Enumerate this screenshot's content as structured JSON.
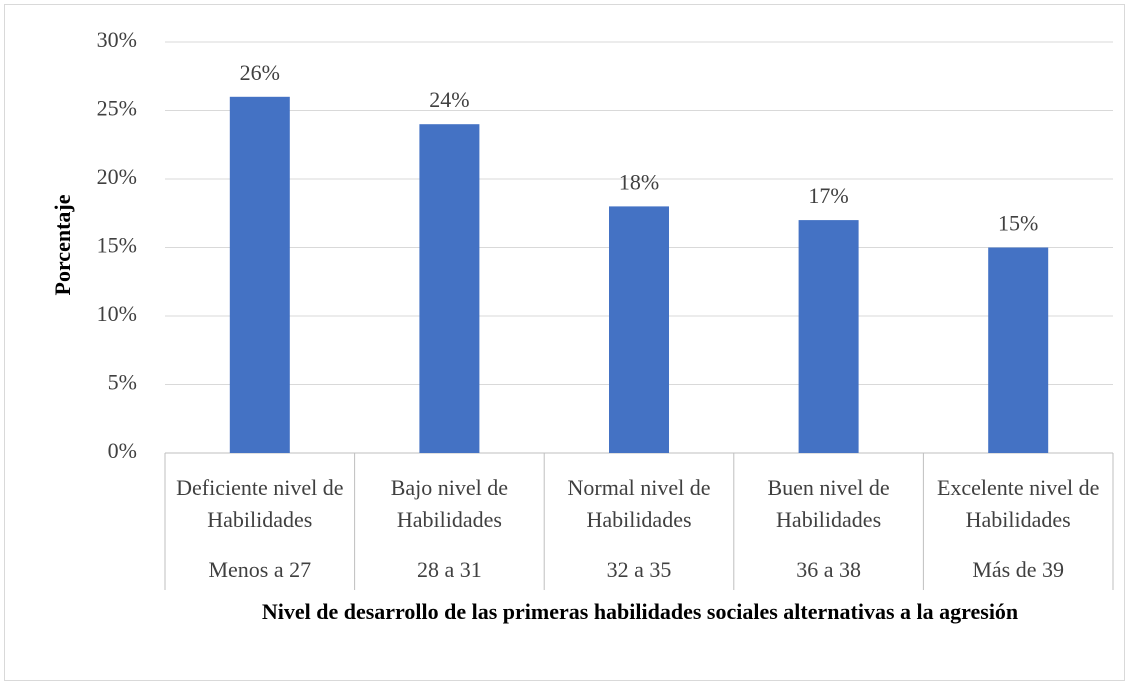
{
  "chart_data": {
    "type": "bar",
    "categories": [
      "Deficiente nivel de Habilidades",
      "Bajo nivel de Habilidades",
      "Normal nivel de Habilidades",
      "Buen nivel de Habilidades",
      "Excelente nivel de Habilidades"
    ],
    "sub_categories": [
      "Menos a 27",
      "28 a 31",
      "32 a 35",
      "36 a 38",
      "Más de 39"
    ],
    "values": [
      26,
      24,
      18,
      17,
      15
    ],
    "value_labels": [
      "26%",
      "24%",
      "18%",
      "17%",
      "15%"
    ],
    "color": "#4472c4",
    "ylim": [
      0,
      30
    ],
    "yticks": [
      {
        "value": 0,
        "label": "0%"
      },
      {
        "value": 5,
        "label": "5%"
      },
      {
        "value": 10,
        "label": "10%"
      },
      {
        "value": 15,
        "label": "15%"
      },
      {
        "value": 20,
        "label": "20%"
      },
      {
        "value": 25,
        "label": "25%"
      },
      {
        "value": 30,
        "label": "30%"
      }
    ],
    "grid": true,
    "y_label": "Porcentaje",
    "x_label": "Nivel de desarrollo de las primeras habilidades sociales alternativas a la agresión"
  }
}
